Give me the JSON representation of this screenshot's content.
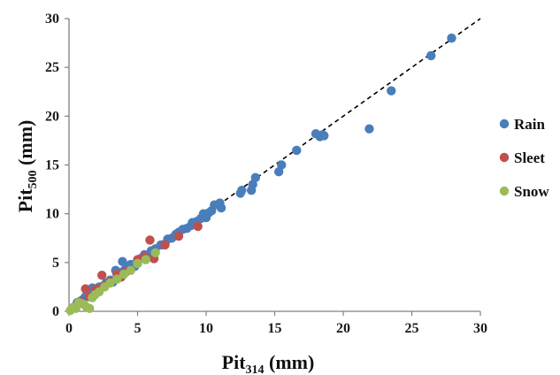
{
  "chart_data": {
    "type": "scatter",
    "xlabel": "Pit",
    "xlabel_sub": "314",
    "xlabel_unit": " (mm)",
    "ylabel": "Pit",
    "ylabel_sub": "500",
    "ylabel_unit": " (mm)",
    "xlim": [
      0,
      30
    ],
    "ylim": [
      0,
      30
    ],
    "xticks": [
      0,
      5,
      10,
      15,
      20,
      25,
      30
    ],
    "yticks": [
      0,
      5,
      10,
      15,
      20,
      25,
      30
    ],
    "grid": false,
    "legend_position": "right",
    "reference_line": {
      "style": "dashed",
      "x": [
        0,
        30
      ],
      "y": [
        0,
        30
      ],
      "color": "#000000"
    },
    "series": [
      {
        "name": "Rain",
        "color": "#4a7ebb",
        "points": [
          [
            0.3,
            0.3
          ],
          [
            0.5,
            0.6
          ],
          [
            0.6,
            0.9
          ],
          [
            0.8,
            1.0
          ],
          [
            1.0,
            1.2
          ],
          [
            1.2,
            1.5
          ],
          [
            1.5,
            1.6
          ],
          [
            1.7,
            2.4
          ],
          [
            1.8,
            1.9
          ],
          [
            2.0,
            2.2
          ],
          [
            2.2,
            2.5
          ],
          [
            2.5,
            2.6
          ],
          [
            2.7,
            2.9
          ],
          [
            3.0,
            3.2
          ],
          [
            3.2,
            3.0
          ],
          [
            3.4,
            4.2
          ],
          [
            3.6,
            3.8
          ],
          [
            3.8,
            4.0
          ],
          [
            3.9,
            5.1
          ],
          [
            4.1,
            4.3
          ],
          [
            4.3,
            4.5
          ],
          [
            4.5,
            4.8
          ],
          [
            4.8,
            4.6
          ],
          [
            5.0,
            4.9
          ],
          [
            5.2,
            5.4
          ],
          [
            5.5,
            5.8
          ],
          [
            5.8,
            5.6
          ],
          [
            6.0,
            6.2
          ],
          [
            6.3,
            6.4
          ],
          [
            6.7,
            6.8
          ],
          [
            7.0,
            6.9
          ],
          [
            7.2,
            7.4
          ],
          [
            7.5,
            7.5
          ],
          [
            7.8,
            7.9
          ],
          [
            8.0,
            8.1
          ],
          [
            8.3,
            8.4
          ],
          [
            8.6,
            8.5
          ],
          [
            8.9,
            8.8
          ],
          [
            9.0,
            9.1
          ],
          [
            9.3,
            9.2
          ],
          [
            9.6,
            9.5
          ],
          [
            9.8,
            10.0
          ],
          [
            10.0,
            9.6
          ],
          [
            10.2,
            10.1
          ],
          [
            10.4,
            10.3
          ],
          [
            10.6,
            10.9
          ],
          [
            11.0,
            11.1
          ],
          [
            11.1,
            10.6
          ],
          [
            12.5,
            12.1
          ],
          [
            12.6,
            12.4
          ],
          [
            13.3,
            12.4
          ],
          [
            13.4,
            13.0
          ],
          [
            13.6,
            13.7
          ],
          [
            15.3,
            14.3
          ],
          [
            15.5,
            15.0
          ],
          [
            16.6,
            16.5
          ],
          [
            18.0,
            18.2
          ],
          [
            18.3,
            17.9
          ],
          [
            18.5,
            18.1
          ],
          [
            18.6,
            18.0
          ],
          [
            21.9,
            18.7
          ],
          [
            23.5,
            22.6
          ],
          [
            26.4,
            26.2
          ],
          [
            27.9,
            28.0
          ]
        ]
      },
      {
        "name": "Sleet",
        "color": "#c0504d",
        "points": [
          [
            0.8,
            1.0
          ],
          [
            1.2,
            2.3
          ],
          [
            1.5,
            1.5
          ],
          [
            2.0,
            2.3
          ],
          [
            2.4,
            3.7
          ],
          [
            2.6,
            2.6
          ],
          [
            3.0,
            3.0
          ],
          [
            3.5,
            3.8
          ],
          [
            3.8,
            3.5
          ],
          [
            4.2,
            4.1
          ],
          [
            5.0,
            5.3
          ],
          [
            5.5,
            5.6
          ],
          [
            5.9,
            7.3
          ],
          [
            6.2,
            5.4
          ],
          [
            7.0,
            6.8
          ],
          [
            8.0,
            7.7
          ],
          [
            9.4,
            8.7
          ]
        ]
      },
      {
        "name": "Snow",
        "color": "#9bbb59",
        "points": [
          [
            0.1,
            0.1
          ],
          [
            0.3,
            0.4
          ],
          [
            0.5,
            0.3
          ],
          [
            0.7,
            0.9
          ],
          [
            0.9,
            0.8
          ],
          [
            1.1,
            0.7
          ],
          [
            1.3,
            0.4
          ],
          [
            1.5,
            0.3
          ],
          [
            1.7,
            1.4
          ],
          [
            1.9,
            1.7
          ],
          [
            2.2,
            2.0
          ],
          [
            2.6,
            2.5
          ],
          [
            3.0,
            2.9
          ],
          [
            3.5,
            3.3
          ],
          [
            4.0,
            3.8
          ],
          [
            4.5,
            4.2
          ],
          [
            5.0,
            4.9
          ],
          [
            5.6,
            5.3
          ],
          [
            6.3,
            6.0
          ]
        ]
      }
    ]
  }
}
